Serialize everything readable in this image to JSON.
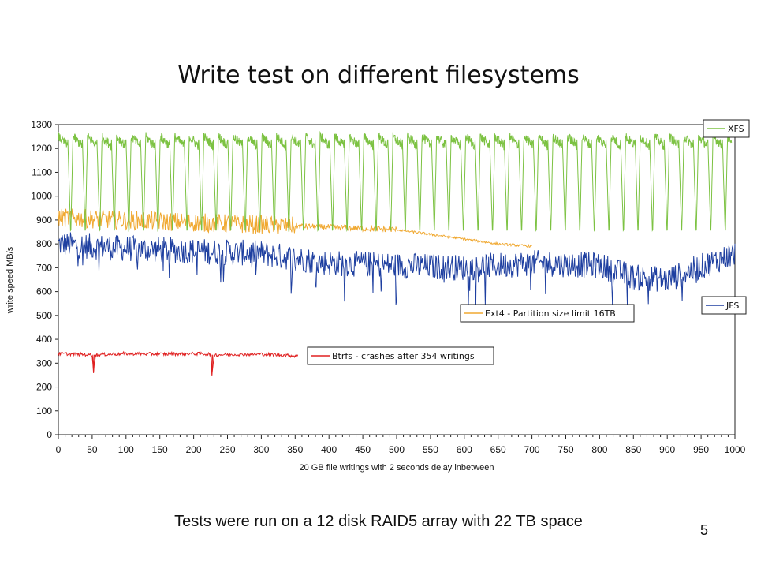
{
  "slide": {
    "title": "Write test on different filesystems",
    "caption": "Tests were run on a 12 disk RAID5 array with 22 TB space",
    "page_number": "5"
  },
  "chart_data": {
    "type": "line",
    "xlabel": "20 GB file writings with 2 seconds delay inbetween",
    "ylabel": "write speed MB/s",
    "xlim": [
      0,
      1000
    ],
    "ylim": [
      0,
      1300
    ],
    "x_ticks": [
      0,
      50,
      100,
      150,
      200,
      250,
      300,
      350,
      400,
      450,
      500,
      550,
      600,
      650,
      700,
      750,
      800,
      850,
      900,
      950,
      1000
    ],
    "y_ticks": [
      0,
      100,
      200,
      300,
      400,
      500,
      600,
      700,
      800,
      900,
      1000,
      1100,
      1200,
      1300
    ],
    "grid": false,
    "series": [
      {
        "name": "XFS",
        "color": "#7cc242",
        "x_range": [
          0,
          995
        ],
        "peak": 1240,
        "trough": 830,
        "note_pattern": "sawtooth ~20 writings per cycle",
        "sample_points": [
          [
            0,
            1080
          ],
          [
            2,
            1250
          ],
          [
            10,
            1255
          ],
          [
            18,
            860
          ],
          [
            22,
            1250
          ],
          [
            40,
            870
          ],
          [
            45,
            1230
          ],
          [
            60,
            840
          ],
          [
            66,
            1235
          ],
          [
            85,
            840
          ],
          [
            90,
            1230
          ],
          [
            110,
            820
          ],
          [
            900,
            1220
          ],
          [
            915,
            830
          ],
          [
            920,
            1220
          ],
          [
            995,
            1210
          ]
        ]
      },
      {
        "name": "Ext4 - Partition size limit 16TB",
        "color": "#f0a830",
        "x_range": [
          0,
          700
        ],
        "sample_points": [
          [
            0,
            910
          ],
          [
            100,
            900
          ],
          [
            200,
            890
          ],
          [
            300,
            880
          ],
          [
            400,
            870
          ],
          [
            500,
            860
          ],
          [
            550,
            840
          ],
          [
            600,
            820
          ],
          [
            650,
            800
          ],
          [
            700,
            790
          ]
        ]
      },
      {
        "name": "JFS",
        "color": "#1e3fa0",
        "x_range": [
          0,
          1000
        ],
        "sample_points": [
          [
            0,
            800
          ],
          [
            100,
            780
          ],
          [
            200,
            770
          ],
          [
            300,
            760
          ],
          [
            400,
            720
          ],
          [
            500,
            710
          ],
          [
            600,
            700
          ],
          [
            700,
            720
          ],
          [
            800,
            710
          ],
          [
            850,
            660
          ],
          [
            900,
            650
          ],
          [
            1000,
            760
          ]
        ]
      },
      {
        "name": "Btrfs - crashes after 354 writings",
        "color": "#e02020",
        "x_range": [
          0,
          354
        ],
        "sample_points": [
          [
            0,
            340
          ],
          [
            50,
            335
          ],
          [
            52,
            265
          ],
          [
            55,
            335
          ],
          [
            100,
            340
          ],
          [
            150,
            338
          ],
          [
            200,
            340
          ],
          [
            225,
            338
          ],
          [
            227,
            245
          ],
          [
            230,
            335
          ],
          [
            300,
            338
          ],
          [
            354,
            330
          ]
        ]
      }
    ],
    "legends": [
      {
        "label": "XFS",
        "color": "#7cc242",
        "placement": "top-right"
      },
      {
        "label": "JFS",
        "color": "#1e3fa0",
        "placement": "right-middle"
      },
      {
        "label": "Ext4 - Partition size limit 16TB",
        "color": "#f0a830",
        "placement": "center"
      },
      {
        "label": "Btrfs - crashes after 354 writings",
        "color": "#e02020",
        "placement": "center-left"
      }
    ]
  }
}
